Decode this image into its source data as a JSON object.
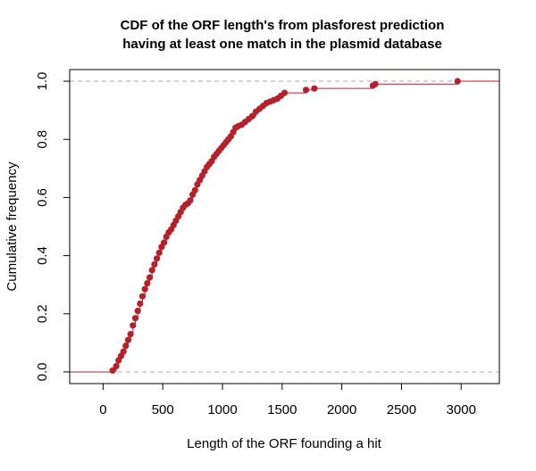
{
  "chart_data": {
    "type": "line",
    "subtype": "ecdf-step",
    "title_lines": [
      "CDF of the ORF length's from plasforest prediction",
      "having at least one match in the plasmid database"
    ],
    "xlabel": "Length of the ORF founding a hit",
    "ylabel": "Cumulative frequency",
    "xlim": [
      -280,
      3320
    ],
    "ylim": [
      -0.04,
      1.04
    ],
    "xticks": [
      0,
      500,
      1000,
      1500,
      2000,
      2500,
      3000
    ],
    "yticks": [
      0.0,
      0.2,
      0.4,
      0.6,
      0.8,
      1.0
    ],
    "xtick_labels": [
      "0",
      "500",
      "1000",
      "1500",
      "2000",
      "2500",
      "3000"
    ],
    "ytick_labels": [
      "0.0",
      "0.2",
      "0.4",
      "0.6",
      "0.8",
      "1.0"
    ],
    "reference_lines_y": [
      0,
      1
    ],
    "color": "#b5202a",
    "reference_line_color": "#aaaaaa",
    "grid": false,
    "legend": "none",
    "series": [
      {
        "x": [
          80,
          110,
          130,
          150,
          170,
          190,
          210,
          230,
          250,
          270,
          290,
          310,
          330,
          350,
          370,
          390,
          410,
          430,
          450,
          470,
          490,
          510,
          530,
          550,
          570,
          590,
          610,
          630,
          650,
          670,
          690,
          710,
          730,
          750,
          770,
          790,
          810,
          830,
          850,
          870,
          890,
          910,
          930,
          950,
          970,
          990,
          1010,
          1030,
          1050,
          1070,
          1090,
          1110,
          1130,
          1160,
          1190,
          1220,
          1250,
          1280,
          1310,
          1340,
          1370,
          1400,
          1430,
          1460,
          1490,
          1520,
          1700,
          1770,
          2260,
          2280,
          2970
        ],
        "y": [
          0.005,
          0.02,
          0.04,
          0.055,
          0.07,
          0.09,
          0.11,
          0.13,
          0.16,
          0.185,
          0.21,
          0.235,
          0.26,
          0.285,
          0.305,
          0.325,
          0.35,
          0.37,
          0.39,
          0.41,
          0.43,
          0.445,
          0.465,
          0.48,
          0.49,
          0.505,
          0.52,
          0.535,
          0.55,
          0.565,
          0.575,
          0.58,
          0.59,
          0.61,
          0.625,
          0.645,
          0.66,
          0.675,
          0.69,
          0.705,
          0.715,
          0.725,
          0.74,
          0.75,
          0.76,
          0.77,
          0.78,
          0.79,
          0.8,
          0.81,
          0.825,
          0.84,
          0.845,
          0.85,
          0.86,
          0.87,
          0.88,
          0.895,
          0.905,
          0.915,
          0.925,
          0.93,
          0.935,
          0.94,
          0.95,
          0.96,
          0.97,
          0.975,
          0.985,
          0.99,
          1.0
        ]
      }
    ]
  }
}
